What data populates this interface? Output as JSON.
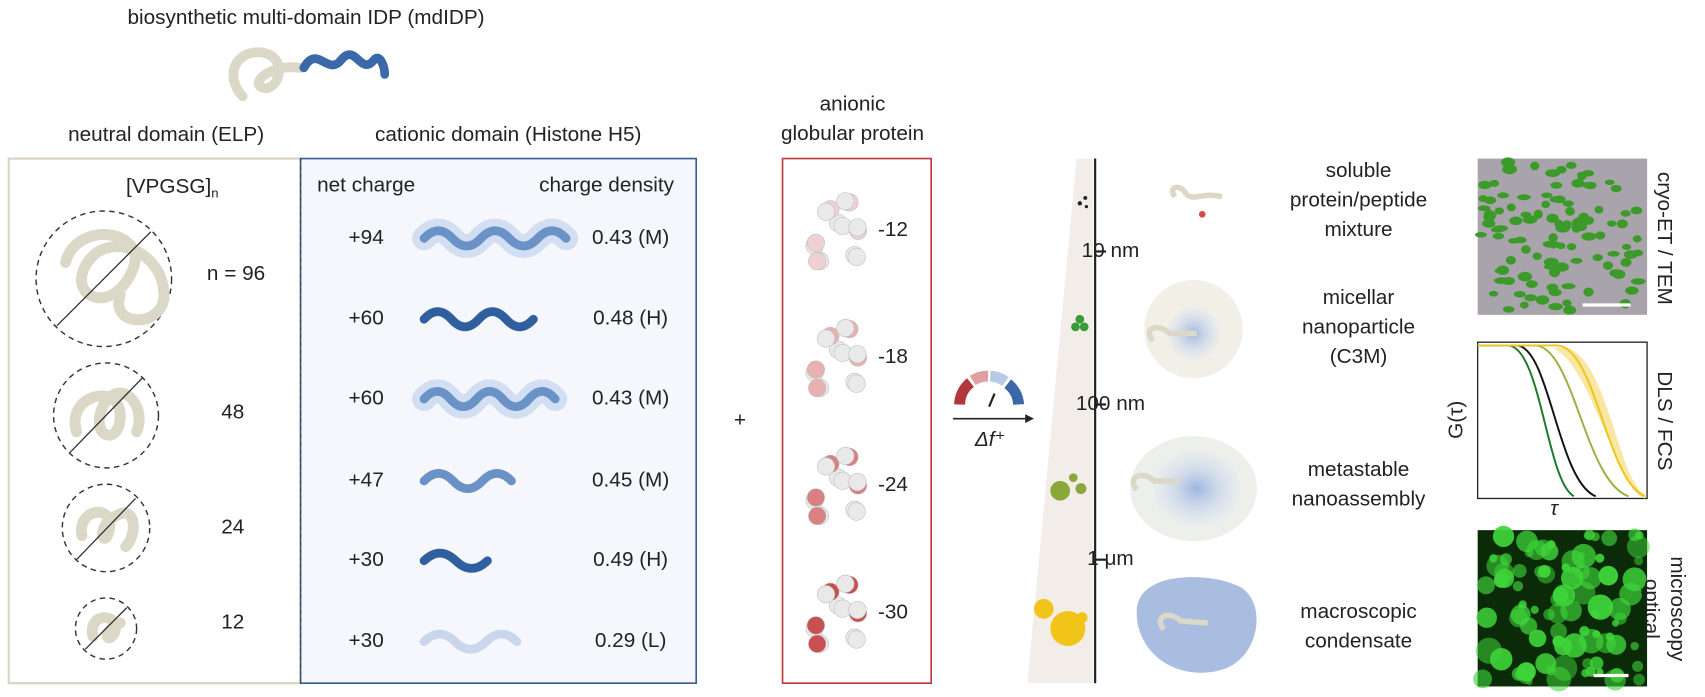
{
  "title": "biosynthetic multi-domain IDP (mdIDP)",
  "neutral_domain": {
    "label": "neutral domain (ELP)",
    "repeat": "[VPGSG]",
    "repeat_subscript": "n",
    "lengths": [
      "n = 96",
      "48",
      "24",
      "12"
    ]
  },
  "cationic_domain": {
    "label": "cationic domain (Histone H5)",
    "net_charge_header": "net charge",
    "charge_density_header": "charge density",
    "rows": [
      [
        "+94",
        "0.43 (M)"
      ],
      [
        "+60",
        "0.48 (H)"
      ],
      [
        "+60",
        "0.43 (M)"
      ],
      [
        "+47",
        "0.45 (M)"
      ],
      [
        "+30",
        "0.49 (H)"
      ],
      [
        "+30",
        "0.29 (L)"
      ]
    ]
  },
  "plus": "+",
  "anionic_protein": {
    "label": [
      "anionic",
      "globular protein"
    ],
    "charges": [
      "-12",
      "-18",
      "-24",
      "-30"
    ]
  },
  "gauge_label": "Δf⁺",
  "scale": [
    "10 nm",
    "100 nm",
    "1 μm"
  ],
  "states": [
    [
      "soluble",
      "protein/peptide",
      "mixture"
    ],
    [
      "micellar",
      "nanoparticle",
      "(C3M)"
    ],
    [
      "metastable",
      "nanoassembly"
    ],
    [
      "macroscopic",
      "condensate"
    ]
  ],
  "methods": {
    "labels": [
      [
        "cryo-ET / TEM"
      ],
      [
        "DLS / FCS"
      ],
      [
        "optical",
        "microscopy"
      ]
    ],
    "y_axis": "G(τ)",
    "x_axis": "τ"
  }
}
